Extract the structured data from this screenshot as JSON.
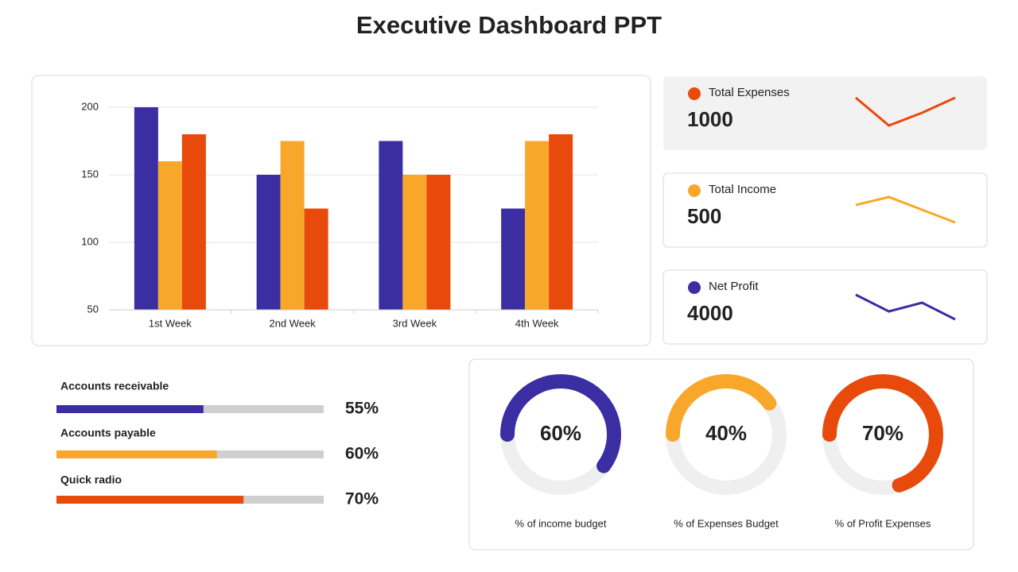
{
  "title": "Executive Dashboard PPT",
  "chart_data": [
    {
      "type": "bar",
      "categories": [
        "1st Week",
        "2nd Week",
        "3rd Week",
        "4th Week"
      ],
      "series": [
        {
          "color": "#3b2ea3",
          "values": [
            200,
            150,
            175,
            125
          ]
        },
        {
          "color": "#f9a72b",
          "values": [
            160,
            175,
            150,
            175
          ]
        },
        {
          "color": "#e84a0c",
          "values": [
            180,
            125,
            150,
            180
          ]
        }
      ],
      "ylim": [
        50,
        200
      ],
      "yticks": [
        50,
        100,
        150,
        200
      ],
      "grid": true
    },
    {
      "type": "line",
      "title": "Total Expenses",
      "value": 1000,
      "color": "#e84a0c",
      "values": [
        35,
        0,
        16,
        35
      ]
    },
    {
      "type": "line",
      "title": "Total Income",
      "value": 500,
      "color": "#f9a72b",
      "values": [
        22,
        32,
        16,
        0
      ]
    },
    {
      "type": "line",
      "title": "Net Profit",
      "value": 4000,
      "color": "#3b2ea3",
      "values": [
        31,
        10,
        21,
        0
      ]
    },
    {
      "type": "progress",
      "categories": [
        "Accounts receivable",
        "Accounts payable",
        "Quick radio"
      ],
      "values": [
        55,
        60,
        70
      ],
      "value_labels": [
        "55%",
        "60%",
        "70%"
      ],
      "colors": [
        "#3b2ea3",
        "#f9a72b",
        "#e84a0c"
      ]
    },
    {
      "type": "donut",
      "categories": [
        "% of income budget",
        "% of Expenses Budget",
        "% of Profit Expenses"
      ],
      "values": [
        60,
        40,
        70
      ],
      "value_labels": [
        "60%",
        "40%",
        "70%"
      ],
      "colors": [
        "#3b2ea3",
        "#f9a72b",
        "#e84a0c"
      ]
    }
  ]
}
